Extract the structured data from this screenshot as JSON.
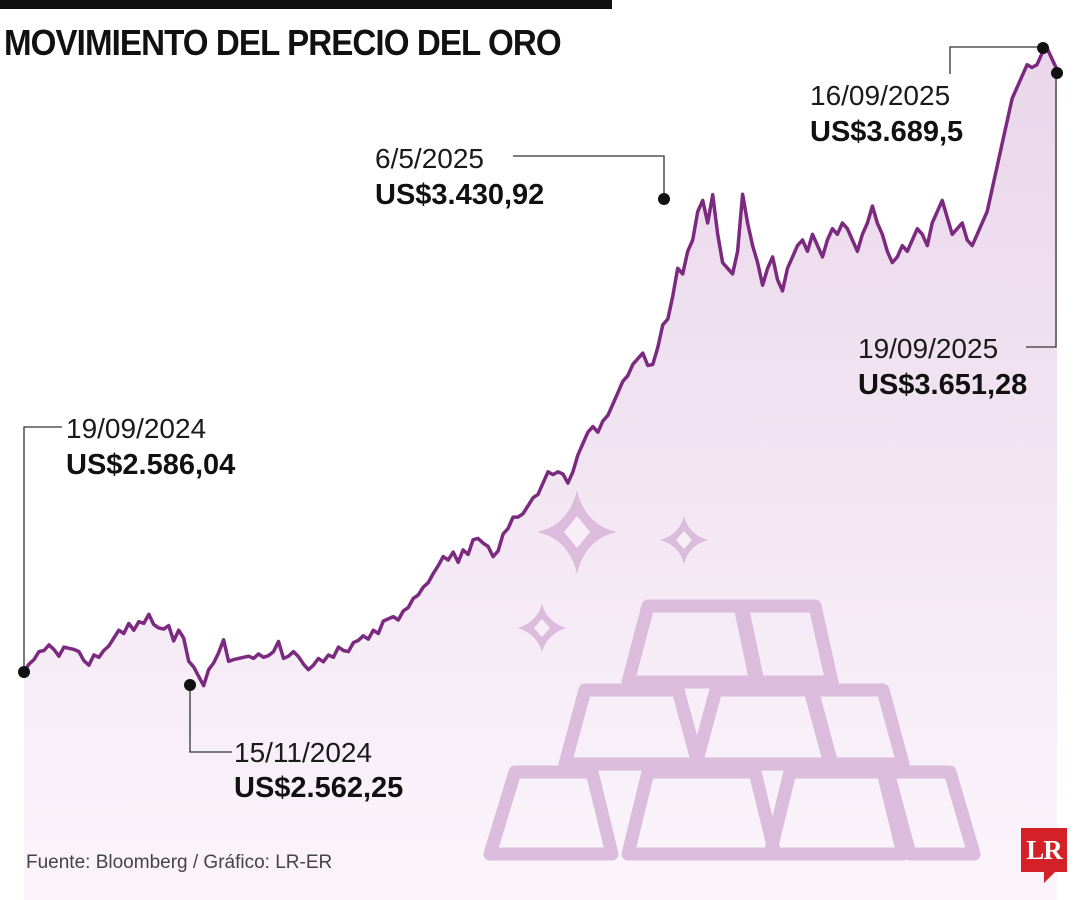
{
  "title": "MOVIMIENTO DEL PRECIO DEL ORO",
  "source": "Fuente: Bloomberg / Gráfico: LR-ER",
  "logo": "LR",
  "colors": {
    "line": "#7b2a80",
    "area_top": "#e9d6ea",
    "area_bottom": "#fbf5fb",
    "decoration": "#dcbcdd",
    "logo": "#d42027"
  },
  "chart_data": {
    "type": "area",
    "ylim": [
      2480,
      3720
    ],
    "x_range": [
      "19/09/2024",
      "19/09/2025"
    ],
    "annotations": [
      {
        "date": "19/09/2024",
        "value": "US$2.586,04"
      },
      {
        "date": "15/11/2024",
        "value": "US$2.562,25"
      },
      {
        "date": "6/5/2025",
        "value": "US$3.430,92"
      },
      {
        "date": "16/09/2025",
        "value": "US$3.689,5"
      },
      {
        "date": "19/09/2025",
        "value": "US$3.651,28"
      }
    ],
    "series": [
      {
        "values": [
          2586,
          2600,
          2608,
          2622,
          2624,
          2634,
          2626,
          2614,
          2630,
          2628,
          2626,
          2622,
          2606,
          2598,
          2616,
          2612,
          2624,
          2632,
          2646,
          2660,
          2654,
          2672,
          2660,
          2675,
          2672,
          2688,
          2670,
          2664,
          2662,
          2668,
          2641,
          2660,
          2646,
          2605,
          2595,
          2578,
          2562,
          2590,
          2602,
          2620,
          2643,
          2605,
          2608,
          2610,
          2612,
          2614,
          2610,
          2618,
          2612,
          2615,
          2622,
          2640,
          2610,
          2614,
          2622,
          2613,
          2600,
          2590,
          2598,
          2610,
          2604,
          2616,
          2612,
          2630,
          2624,
          2622,
          2638,
          2642,
          2650,
          2644,
          2660,
          2654,
          2676,
          2680,
          2684,
          2678,
          2694,
          2700,
          2716,
          2722,
          2736,
          2744,
          2760,
          2774,
          2790,
          2784,
          2798,
          2780,
          2802,
          2794,
          2820,
          2822,
          2814,
          2808,
          2790,
          2800,
          2830,
          2840,
          2860,
          2860,
          2866,
          2880,
          2894,
          2900,
          2920,
          2940,
          2935,
          2940,
          2936,
          2920,
          2940,
          2970,
          2990,
          3010,
          3020,
          3010,
          3030,
          3040,
          3060,
          3080,
          3100,
          3110,
          3130,
          3140,
          3150,
          3128,
          3130,
          3160,
          3200,
          3210,
          3250,
          3300,
          3290,
          3330,
          3350,
          3400,
          3420,
          3380,
          3430,
          3360,
          3310,
          3300,
          3290,
          3330,
          3430.92,
          3380,
          3340,
          3310,
          3270,
          3300,
          3320,
          3280,
          3260,
          3300,
          3320,
          3340,
          3350,
          3330,
          3360,
          3340,
          3320,
          3350,
          3370,
          3360,
          3380,
          3370,
          3350,
          3330,
          3360,
          3380,
          3410,
          3380,
          3360,
          3330,
          3310,
          3320,
          3340,
          3330,
          3350,
          3370,
          3360,
          3340,
          3380,
          3400,
          3420,
          3390,
          3360,
          3370,
          3380,
          3350,
          3340,
          3360,
          3380,
          3400,
          3440,
          3480,
          3520,
          3560,
          3600,
          3620,
          3640,
          3660,
          3655,
          3660,
          3680,
          3689.5,
          3670,
          3651.28
        ]
      }
    ]
  }
}
